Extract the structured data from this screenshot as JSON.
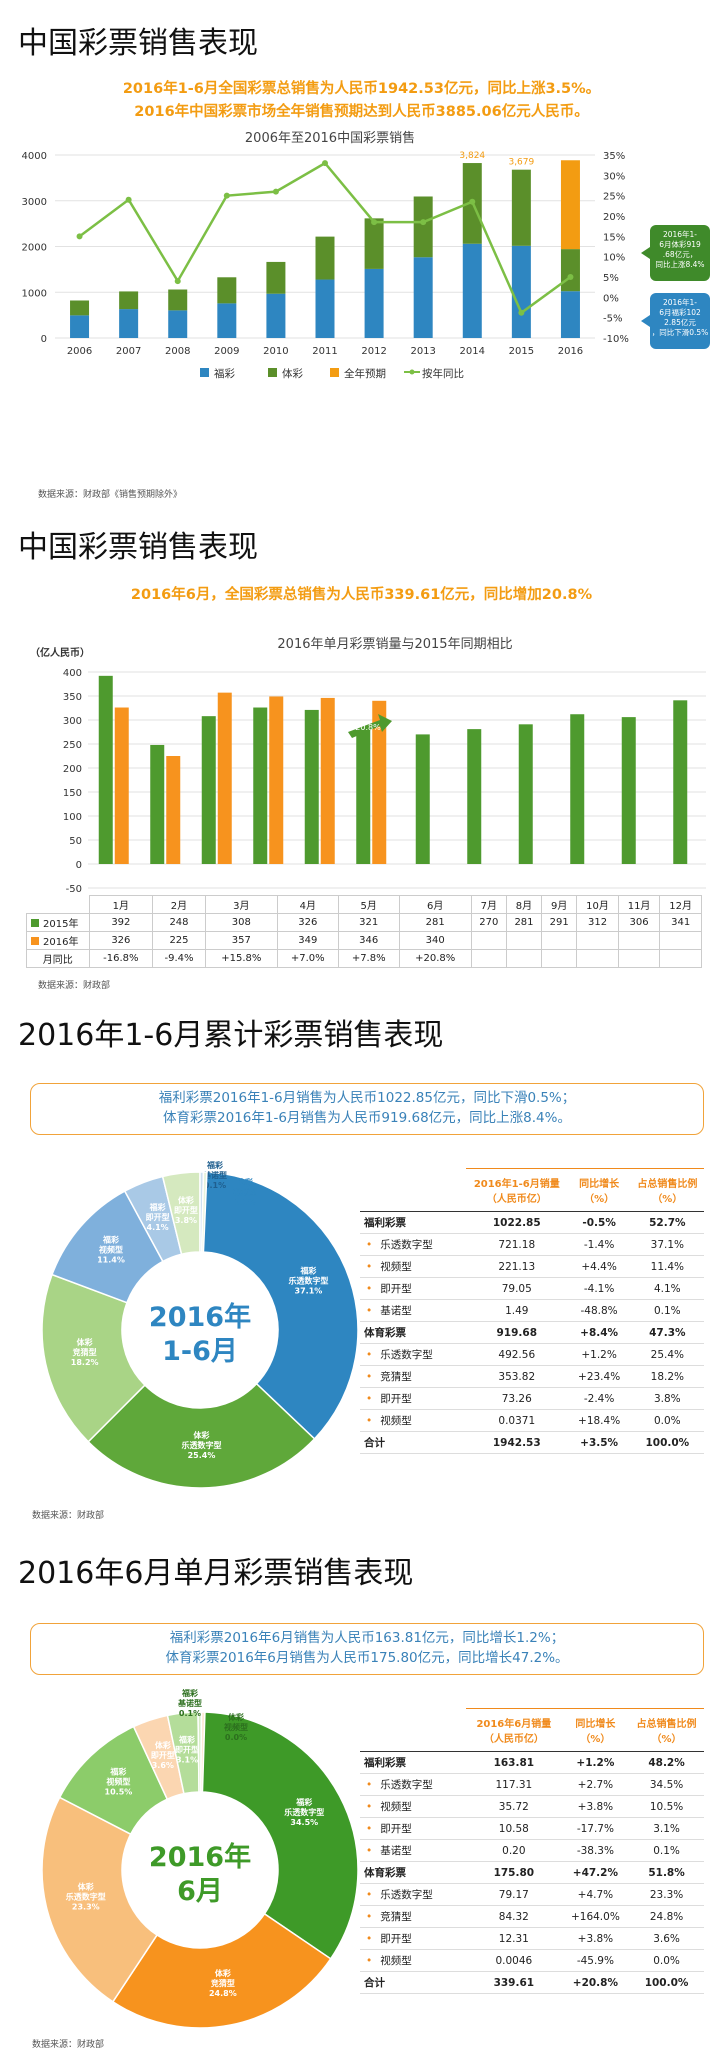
{
  "sec1": {
    "title": "中国彩票销售表现",
    "line1": "2016年1-6月全国彩票总销售为人民币1942.53亿元，同比上涨3.5%。",
    "line2": "2016年中国彩票市场全年销售预期达到人民币3885.06亿元人民币。",
    "source": "数据来源：财政部《销售预期除外》"
  },
  "sec2": {
    "title": "中国彩票销售表现",
    "line1": "2016年6月，全国彩票总销售为人民币339.61亿元，同比增加20.8%",
    "source": "数据来源：财政部"
  },
  "sec3": {
    "title": "2016年1-6月累计彩票销售表现",
    "box1": "福利彩票2016年1-6月销售为人民币1022.85亿元，同比下滑0.5%；",
    "box2": "体育彩票2016年1-6月销售为人民币919.68亿元，同比上涨8.4%。",
    "center1": "2016年",
    "center2": "1-6月",
    "source": "数据来源：财政部",
    "table": {
      "h1": "2016年1-6月销量（人民币亿）",
      "h2": "同比增长（%）",
      "h3": "占总销售比例（%）",
      "rows": [
        {
          "n": "福利彩票",
          "v": "1022.85",
          "g": "-0.5%",
          "p": "52.7%",
          "head": true
        },
        {
          "n": "乐透数字型",
          "v": "721.18",
          "g": "-1.4%",
          "p": "37.1%"
        },
        {
          "n": "视频型",
          "v": "221.13",
          "g": "+4.4%",
          "p": "11.4%"
        },
        {
          "n": "即开型",
          "v": "79.05",
          "g": "-4.1%",
          "p": "4.1%"
        },
        {
          "n": "基诺型",
          "v": "1.49",
          "g": "-48.8%",
          "p": "0.1%"
        },
        {
          "n": "体育彩票",
          "v": "919.68",
          "g": "+8.4%",
          "p": "47.3%",
          "head": true
        },
        {
          "n": "乐透数字型",
          "v": "492.56",
          "g": "+1.2%",
          "p": "25.4%"
        },
        {
          "n": "竞猜型",
          "v": "353.82",
          "g": "+23.4%",
          "p": "18.2%"
        },
        {
          "n": "即开型",
          "v": "73.26",
          "g": "-2.4%",
          "p": "3.8%"
        },
        {
          "n": "视频型",
          "v": "0.0371",
          "g": "+18.4%",
          "p": "0.0%"
        },
        {
          "n": "合计",
          "v": "1942.53",
          "g": "+3.5%",
          "p": "100.0%",
          "head": true
        }
      ]
    }
  },
  "sec4": {
    "title": "2016年6月单月彩票销售表现",
    "box1": "福利彩票2016年6月销售为人民币163.81亿元，同比增长1.2%；",
    "box2": "体育彩票2016年6月销售为人民币175.80亿元，同比增长47.2%。",
    "center1": "2016年",
    "center2": "6月",
    "source": "数据来源：财政部",
    "table": {
      "h1": "2016年6月销量（人民币亿）",
      "h2": "同比增长（%）",
      "h3": "占总销售比例（%）",
      "rows": [
        {
          "n": "福利彩票",
          "v": "163.81",
          "g": "+1.2%",
          "p": "48.2%",
          "head": true
        },
        {
          "n": "乐透数字型",
          "v": "117.31",
          "g": "+2.7%",
          "p": "34.5%"
        },
        {
          "n": "视频型",
          "v": "35.72",
          "g": "+3.8%",
          "p": "10.5%"
        },
        {
          "n": "即开型",
          "v": "10.58",
          "g": "-17.7%",
          "p": "3.1%"
        },
        {
          "n": "基诺型",
          "v": "0.20",
          "g": "-38.3%",
          "p": "0.1%"
        },
        {
          "n": "体育彩票",
          "v": "175.80",
          "g": "+47.2%",
          "p": "51.8%",
          "head": true
        },
        {
          "n": "乐透数字型",
          "v": "79.17",
          "g": "+4.7%",
          "p": "23.3%"
        },
        {
          "n": "竞猜型",
          "v": "84.32",
          "g": "+164.0%",
          "p": "24.8%"
        },
        {
          "n": "即开型",
          "v": "12.31",
          "g": "+3.8%",
          "p": "3.6%"
        },
        {
          "n": "视频型",
          "v": "0.0046",
          "g": "-45.9%",
          "p": "0.0%"
        },
        {
          "n": "合计",
          "v": "339.61",
          "g": "+20.8%",
          "p": "100.0%",
          "head": true
        }
      ]
    }
  },
  "chart_data": [
    {
      "type": "bar",
      "title": "2006年至2016中国彩票销售",
      "categories": [
        "2006",
        "2007",
        "2008",
        "2009",
        "2010",
        "2011",
        "2012",
        "2013",
        "2014",
        "2015",
        "2016"
      ],
      "series": [
        {
          "name": "福彩",
          "color": "#2e86c1",
          "values": [
            495,
            632,
            604,
            757,
            968,
            1278,
            1510,
            1765,
            2060,
            2015,
            1023
          ]
        },
        {
          "name": "体彩",
          "color": "#5b8f2a",
          "values": [
            325,
            386,
            456,
            570,
            695,
            938,
            1105,
            1328,
            1764,
            1664,
            920
          ]
        },
        {
          "name": "全年预期",
          "color": "#f39c12",
          "values": [
            null,
            null,
            null,
            null,
            null,
            null,
            null,
            null,
            null,
            null,
            1942
          ]
        },
        {
          "name": "按年同比",
          "color": "#7cbf45",
          "values": [
            15,
            24,
            4,
            25,
            26,
            33,
            18.5,
            18.5,
            23.5,
            -3.8,
            5
          ]
        }
      ],
      "ylim": [
        0,
        4000
      ],
      "y2lim": [
        -10,
        35
      ],
      "yticks": [
        "0",
        "1000",
        "2000",
        "3000",
        "4000"
      ],
      "y2ticks": [
        "-10%",
        "-5%",
        "0%",
        "5%",
        "10%",
        "15%",
        "20%",
        "25%",
        "30%",
        "35%"
      ],
      "labels": {
        "2014": "3,824",
        "2015": "3,679"
      },
      "callout_green": "2016年1-6月体彩919.68亿元，同比上涨8.4%",
      "callout_blue": "2016年1-6月福彩1022.85亿元，同比下滑0.5%"
    },
    {
      "type": "bar",
      "title": "2016年单月彩票销量与2015年同期相比",
      "ylabel": "（亿人民币）",
      "categories": [
        "1月",
        "2月",
        "3月",
        "4月",
        "5月",
        "6月",
        "7月",
        "8月",
        "9月",
        "10月",
        "11月",
        "12月"
      ],
      "series": [
        {
          "name": "2015年",
          "color": "#4e9a2e",
          "values": [
            392,
            248,
            308,
            326,
            321,
            281,
            270,
            281,
            291,
            312,
            306,
            341
          ]
        },
        {
          "name": "2016年",
          "color": "#f7931e",
          "values": [
            326,
            225,
            357,
            349,
            346,
            340,
            null,
            null,
            null,
            null,
            null,
            null
          ]
        }
      ],
      "yoy_label": "月同比",
      "yoy": [
        "-16.8%",
        "-9.4%",
        "+15.8%",
        "+7.0%",
        "+7.8%",
        "+20.8%",
        "",
        "",
        "",
        "",
        "",
        ""
      ],
      "ylim": [
        -50,
        400
      ],
      "yticks": [
        "-50",
        "0",
        "50",
        "100",
        "150",
        "200",
        "250",
        "300",
        "350",
        "400"
      ],
      "arrow_label": "20.8%"
    },
    {
      "type": "pie",
      "slices": [
        {
          "name": "福彩 乐透数字型",
          "value": 37.1,
          "color": "#2e86c1"
        },
        {
          "name": "体彩 乐透数字型",
          "value": 25.4,
          "color": "#5fa83a"
        },
        {
          "name": "体彩 竞猜型",
          "value": 18.2,
          "color": "#a9d486"
        },
        {
          "name": "福彩 视频型",
          "value": 11.4,
          "color": "#7fb0dc"
        },
        {
          "name": "福彩 即开型",
          "value": 4.1,
          "color": "#a9c9e6"
        },
        {
          "name": "体彩 即开型",
          "value": 3.8,
          "color": "#d5e9bf"
        },
        {
          "name": "福彩 基诺型",
          "value": 0.1,
          "color": "#cde0f0"
        },
        {
          "name": "体彩 视频型",
          "value": 0.0,
          "color": "#e8f3dc"
        }
      ]
    },
    {
      "type": "pie",
      "slices": [
        {
          "name": "福彩 乐透数字型",
          "value": 34.5,
          "color": "#3e9a28"
        },
        {
          "name": "体彩 竞猜型",
          "value": 24.8,
          "color": "#f7931e"
        },
        {
          "name": "体彩 乐透数字型",
          "value": 23.3,
          "color": "#f8bf7c"
        },
        {
          "name": "福彩 视频型",
          "value": 10.5,
          "color": "#8ccc6a"
        },
        {
          "name": "体彩 即开型",
          "value": 3.6,
          "color": "#fbd6b1"
        },
        {
          "name": "福彩 即开型",
          "value": 3.1,
          "color": "#b4dd9a"
        },
        {
          "name": "福彩 基诺型",
          "value": 0.1,
          "color": "#d6edc6"
        },
        {
          "name": "体彩 视频型",
          "value": 0.0,
          "color": "#fde9d5"
        }
      ]
    }
  ]
}
